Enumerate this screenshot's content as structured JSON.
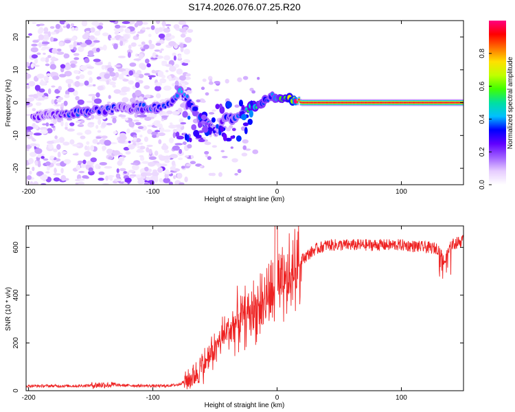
{
  "figure_title": "S174.2026.076.07.25.R20",
  "chart_data": [
    {
      "type": "heatmap",
      "name": "spectrogram",
      "xlabel": "Height of straight line (km)",
      "ylabel": "Frequency (Hz)",
      "xlim": [
        -202,
        150
      ],
      "ylim": [
        -25,
        25
      ],
      "xticks": [
        -200,
        -100,
        0,
        100
      ],
      "yticks": [
        -20,
        -10,
        0,
        10,
        20
      ],
      "colorbar": {
        "label": "Normalized spectral amplitude",
        "range": [
          0,
          1
        ],
        "ticks": [
          0,
          0.2,
          0.4,
          0.6,
          0.8
        ],
        "tick_labels": [
          "0.0",
          "0.2",
          "0.4",
          "0.6",
          "0.8"
        ],
        "colormap": [
          "#ffffff",
          "#e6ccff",
          "#a060ff",
          "#6000ff",
          "#0000ff",
          "#00c0ff",
          "#00e0a0",
          "#40ff00",
          "#c0ff00",
          "#ffe000",
          "#ff7000",
          "#ff0000",
          "#ff0080"
        ]
      },
      "features": {
        "noise_region_x": [
          -202,
          -80
        ],
        "trace": [
          {
            "x": -195,
            "y": -4,
            "a": 0.22
          },
          {
            "x": -180,
            "y": -4,
            "a": 0.2
          },
          {
            "x": -165,
            "y": -3,
            "a": 0.3
          },
          {
            "x": -150,
            "y": -2.5,
            "a": 0.3
          },
          {
            "x": -135,
            "y": -2,
            "a": 0.28
          },
          {
            "x": -120,
            "y": -1.5,
            "a": 0.22
          },
          {
            "x": -105,
            "y": -1.5,
            "a": 0.3
          },
          {
            "x": -95,
            "y": -1.5,
            "a": 0.28
          },
          {
            "x": -85,
            "y": 0,
            "a": 0.3
          },
          {
            "x": -78,
            "y": 4,
            "a": 0.35
          },
          {
            "x": -70,
            "y": 0,
            "a": 0.3
          },
          {
            "x": -62,
            "y": -5,
            "a": 0.3
          },
          {
            "x": -55,
            "y": -7,
            "a": 0.3
          },
          {
            "x": -48,
            "y": -9,
            "a": 0.2
          },
          {
            "x": -42,
            "y": -4,
            "a": 0.3
          },
          {
            "x": -35,
            "y": -5,
            "a": 0.3
          },
          {
            "x": -28,
            "y": -3,
            "a": 0.3
          },
          {
            "x": -20,
            "y": -1.5,
            "a": 0.55
          },
          {
            "x": -12,
            "y": 0,
            "a": 0.4
          },
          {
            "x": -5,
            "y": 2,
            "a": 0.35
          },
          {
            "x": 2,
            "y": 1.5,
            "a": 0.45
          },
          {
            "x": 10,
            "y": 1,
            "a": 0.6
          },
          {
            "x": 20,
            "y": 0,
            "a": 0.95
          },
          {
            "x": 60,
            "y": 0,
            "a": 0.95
          },
          {
            "x": 100,
            "y": 0,
            "a": 0.95
          },
          {
            "x": 130,
            "y": 0,
            "a": 0.95
          },
          {
            "x": 150,
            "y": 0,
            "a": 0.95
          }
        ]
      }
    },
    {
      "type": "line",
      "name": "snr",
      "xlabel": "Height of straight line (km)",
      "ylabel": "SNR (10 * v/v)",
      "xlim": [
        -202,
        150
      ],
      "ylim": [
        0,
        690
      ],
      "xticks": [
        -200,
        -100,
        0,
        100
      ],
      "yticks": [
        0,
        200,
        400,
        600
      ],
      "color": "#ee2222",
      "series": [
        {
          "name": "SNR",
          "x": [
            -202,
            -180,
            -160,
            -140,
            -120,
            -100,
            -90,
            -80,
            -70,
            -60,
            -50,
            -40,
            -30,
            -20,
            -10,
            0,
            10,
            20,
            30,
            40,
            60,
            80,
            100,
            120,
            130,
            135,
            140,
            145,
            150
          ],
          "y": [
            20,
            20,
            20,
            25,
            22,
            20,
            20,
            25,
            50,
            100,
            180,
            250,
            300,
            330,
            380,
            400,
            460,
            550,
            590,
            610,
            610,
            610,
            610,
            600,
            595,
            540,
            610,
            620,
            630
          ]
        }
      ]
    }
  ]
}
